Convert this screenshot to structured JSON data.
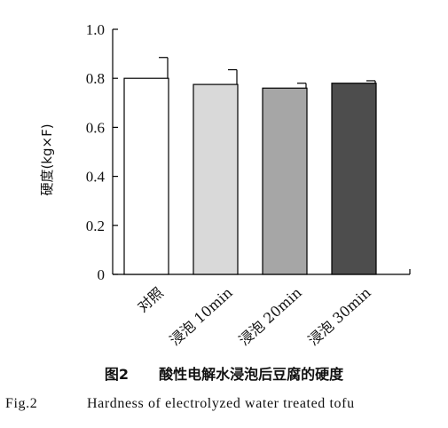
{
  "chart_data": {
    "type": "bar",
    "categories": [
      "对照",
      "浸泡 10min",
      "浸泡 20min",
      "浸泡 30min"
    ],
    "values": [
      0.8,
      0.775,
      0.76,
      0.78
    ],
    "errors": [
      0.085,
      0.06,
      0.02,
      0.01
    ],
    "ylabel": "硬度(kg×F)",
    "xlabel": "",
    "ylim": [
      0,
      1.0
    ],
    "yticks": [
      0,
      0.2,
      0.4,
      0.6,
      0.8,
      1.0
    ],
    "ytick_labels": [
      "0",
      "0.2",
      "0.4",
      "0.6",
      "0.8",
      "1.0"
    ],
    "grid": false,
    "bar_colors": [
      "#ffffff",
      "#d9d9d9",
      "#a6a6a6",
      "#4d4d4d"
    ]
  },
  "caption": {
    "cn_number": "图2",
    "cn_title": "酸性电解水浸泡后豆腐的硬度",
    "en_number": "Fig.2",
    "en_title": "Hardness of electrolyzed water treated tofu"
  }
}
